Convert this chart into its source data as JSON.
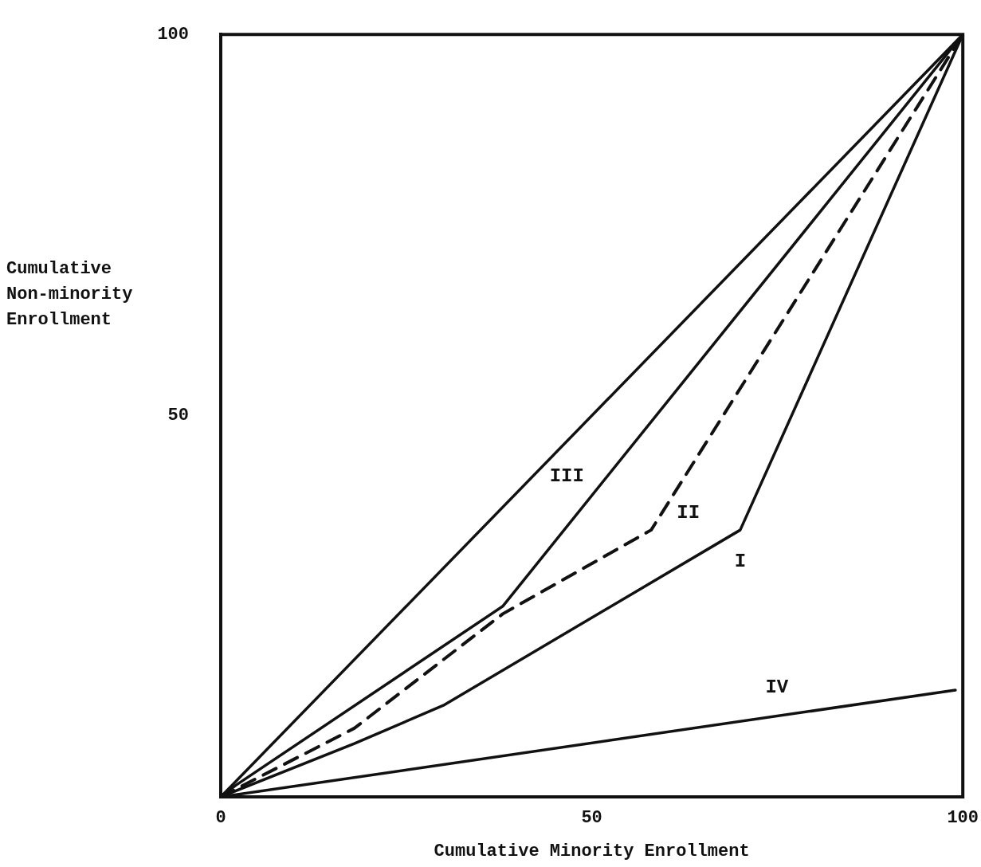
{
  "chart_data": {
    "type": "line",
    "xlabel": "Cumulative Minority Enrollment",
    "ylabel": "Cumulative\nNon-minority\nEnrollment",
    "xlim": [
      0,
      100
    ],
    "ylim": [
      0,
      100
    ],
    "xticks": [
      0,
      50,
      100
    ],
    "yticks": [
      50,
      100
    ],
    "grid": false,
    "legend": false,
    "marker": "none",
    "series": [
      {
        "color": "#111111",
        "line_style": "solid",
        "x": [
          0,
          100
        ],
        "values": [
          0,
          100
        ]
      },
      {
        "name": "III",
        "color": "#111111",
        "line_style": "solid",
        "x": [
          0,
          2,
          38,
          100
        ],
        "values": [
          0,
          1.5,
          25,
          100
        ]
      },
      {
        "name": "II",
        "color": "#111111",
        "line_style": "dashed",
        "x": [
          0,
          18,
          38,
          58,
          100
        ],
        "values": [
          0,
          9,
          24,
          35,
          100
        ]
      },
      {
        "name": "I",
        "color": "#111111",
        "line_style": "solid",
        "x": [
          0,
          18,
          30,
          70,
          100
        ],
        "values": [
          0,
          7,
          12,
          35,
          100
        ]
      },
      {
        "name": "IV",
        "color": "#111111",
        "line_style": "solid",
        "x": [
          0,
          99
        ],
        "values": [
          0,
          14
        ]
      }
    ]
  }
}
